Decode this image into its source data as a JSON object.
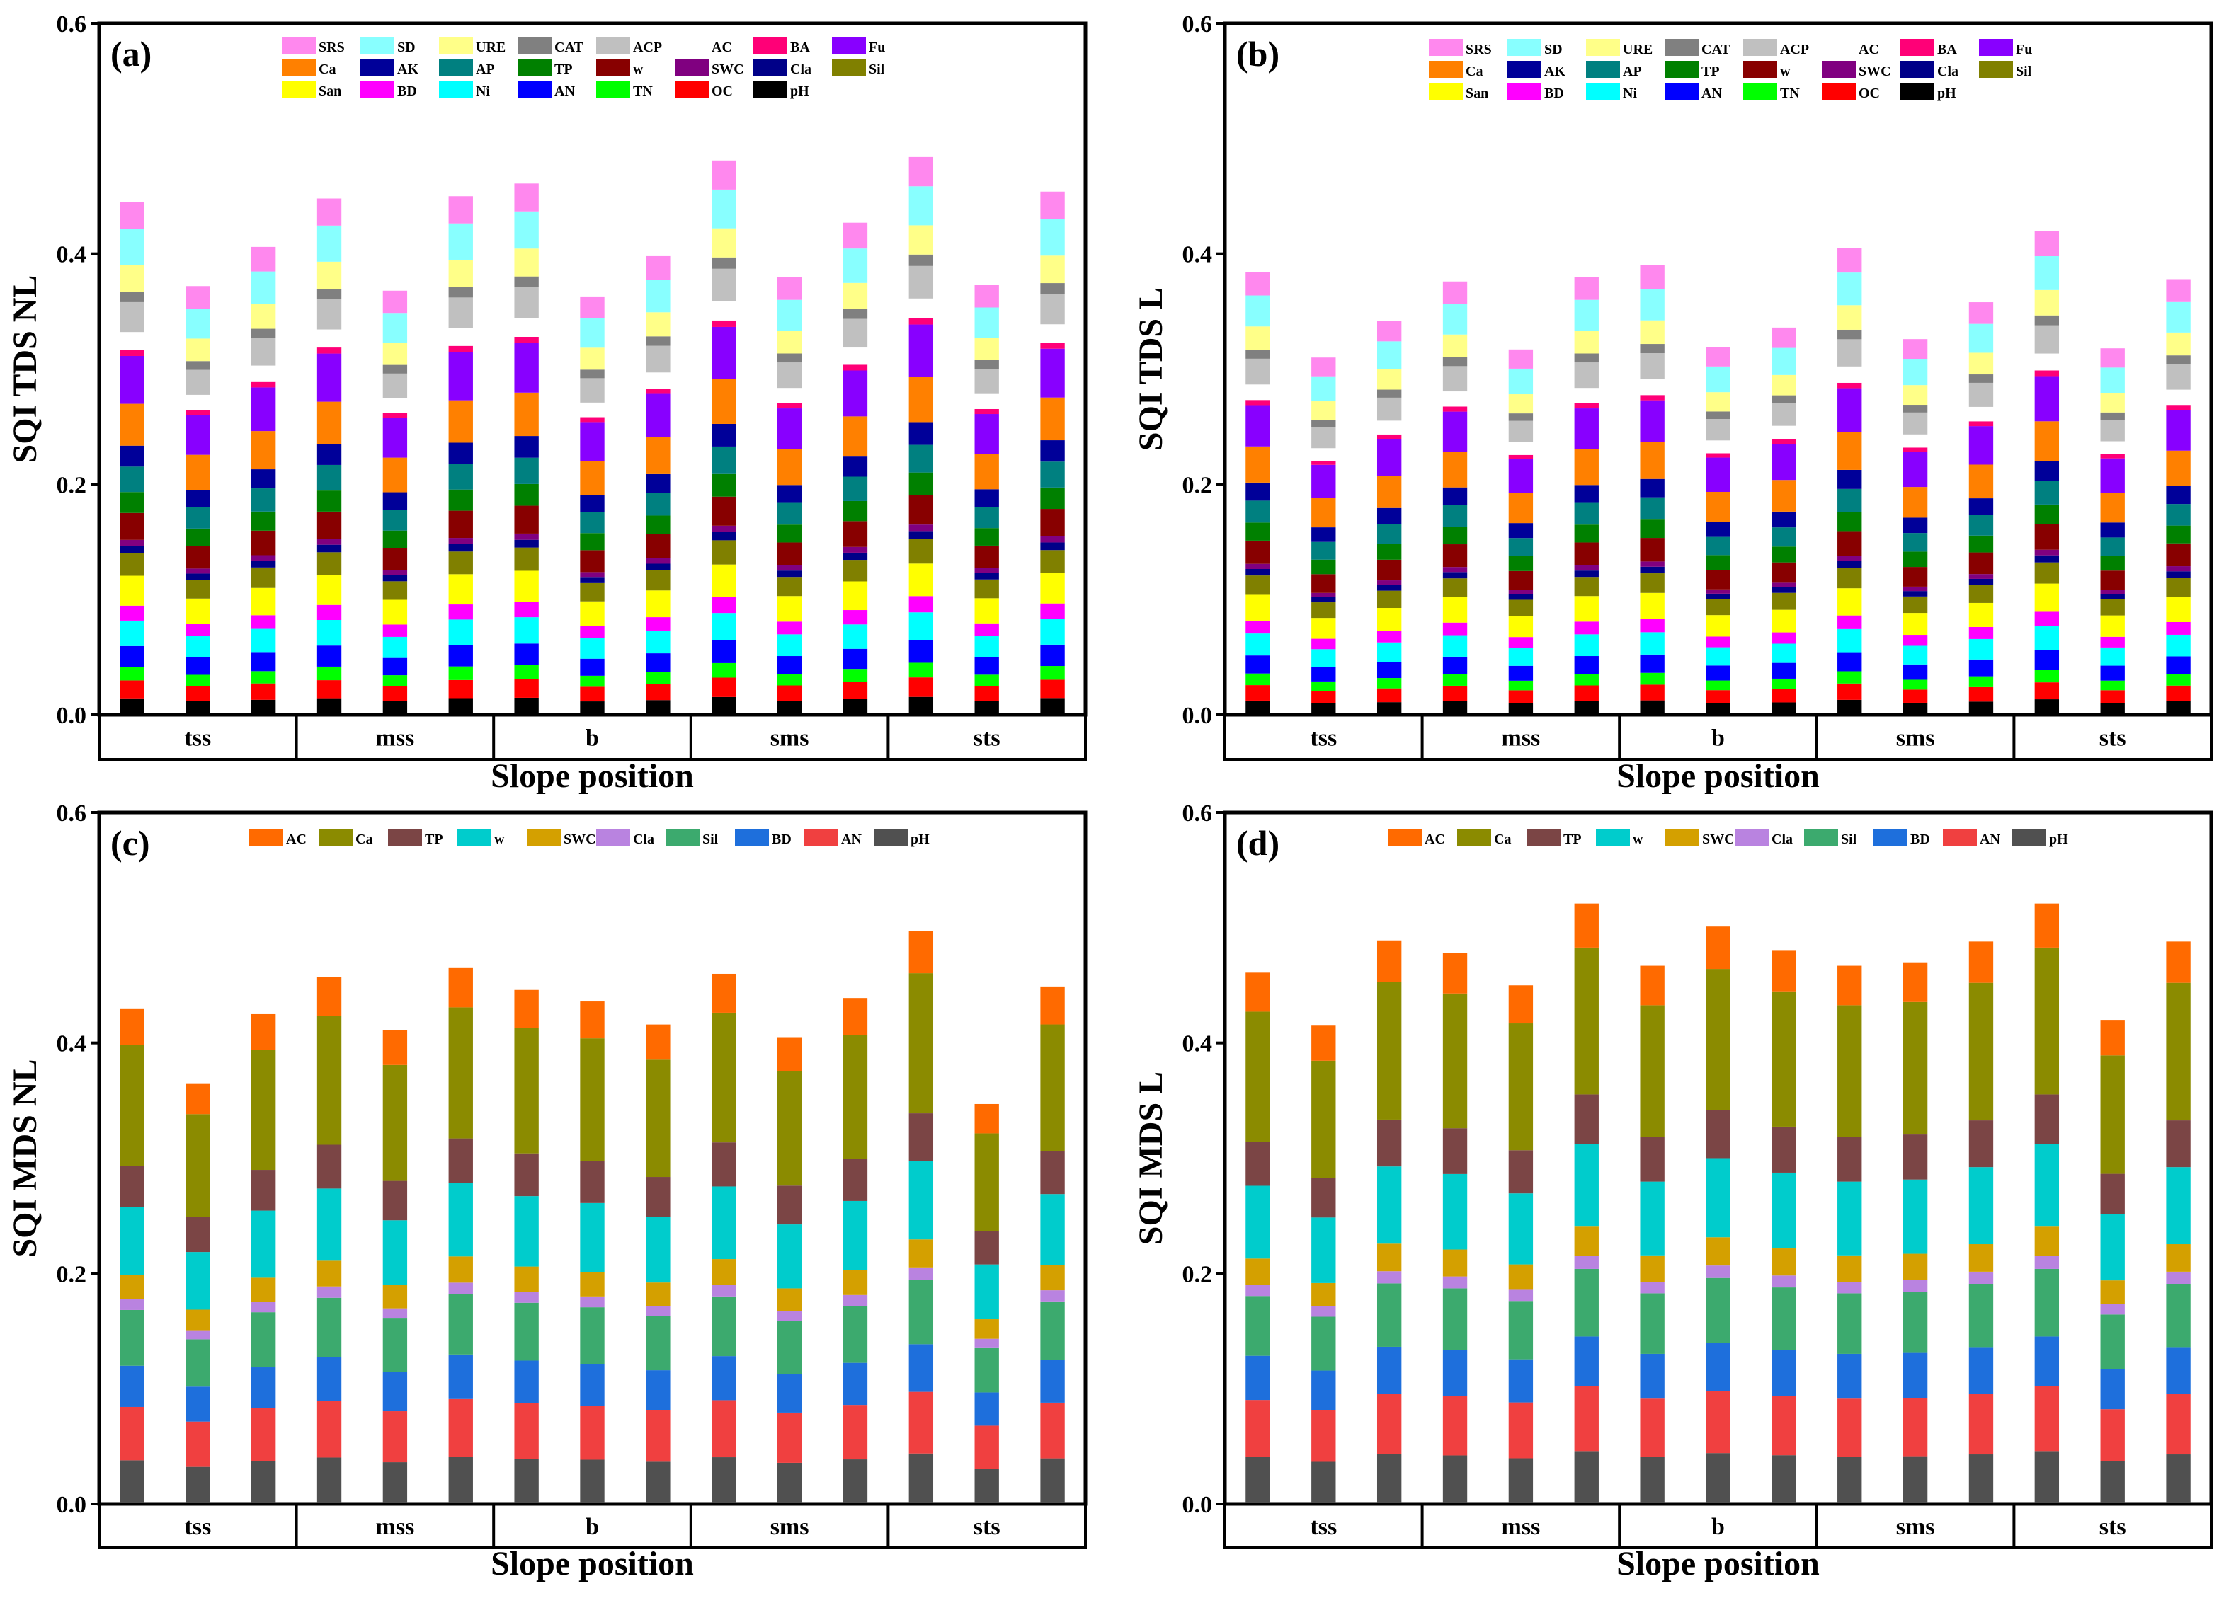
{
  "figure": {
    "x_axis_label": "Slope position"
  },
  "groups": [
    "tss",
    "mss",
    "b",
    "sms",
    "sts"
  ],
  "palettes": {
    "tds": {
      "SRS": "#ff88ee",
      "SD": "#88ffff",
      "URE": "#ffff88",
      "CAT": "#808080",
      "ACP": "#c0c0c0",
      "AC": "#ffffff",
      "BA": "#ff0077",
      "Fu": "#8800ff",
      "Ca": "#ff8000",
      "AK": "#000099",
      "AP": "#008080",
      "TP": "#008000",
      "w": "#880000",
      "SWC": "#800080",
      "Cla": "#000088",
      "Sil": "#808000",
      "San": "#ffff00",
      "BD": "#ff00ff",
      "Ni": "#00ffff",
      "AN": "#0000ff",
      "TN": "#00ff00",
      "OC": "#ff0000",
      "pH": "#000000"
    },
    "mds": {
      "AC": "#ff6a00",
      "Ca": "#8b8b00",
      "TP": "#7b4545",
      "w": "#00cccc",
      "SWC": "#d4a000",
      "Cla": "#b983e0",
      "Sil": "#3caa6e",
      "BD": "#1e6fdc",
      "AN": "#f04040",
      "pH": "#505050"
    }
  },
  "chart_data": [
    {
      "type": "bar",
      "stacked": true,
      "panel_label": "(a)",
      "ylabel": "SQI TDS NL",
      "xlabel": "Slope position",
      "ylim": [
        0,
        0.6
      ],
      "yticks": [
        "0.0",
        "0.2",
        "0.4",
        "0.6"
      ],
      "groups": [
        "tss",
        "mss",
        "b",
        "sms",
        "sts"
      ],
      "legend_rows": [
        [
          "SRS",
          "SD",
          "URE",
          "CAT",
          "ACP",
          "AC",
          "BA",
          "Fu"
        ],
        [
          "Ca",
          "AK",
          "AP",
          "TP",
          "w",
          "SWC",
          "Cla",
          "Sil"
        ],
        [
          "San",
          "BD",
          "Ni",
          "AN",
          "TN",
          "OC",
          "pH"
        ]
      ],
      "series": [
        "pH",
        "OC",
        "TN",
        "AN",
        "Ni",
        "BD",
        "San",
        "Sil",
        "Cla",
        "SWC",
        "w",
        "TP",
        "AP",
        "AK",
        "Ca",
        "Fu",
        "BA",
        "AC",
        "ACP",
        "CAT",
        "URE",
        "SD",
        "SRS"
      ],
      "weights": [
        0.55,
        0.6,
        0.45,
        0.7,
        0.85,
        0.5,
        1.0,
        0.75,
        0.25,
        0.2,
        0.9,
        0.7,
        0.85,
        0.7,
        1.4,
        1.6,
        0.2,
        0.6,
        1.0,
        0.35,
        0.9,
        1.2,
        0.9
      ],
      "totals": [
        0.445,
        0.372,
        0.406,
        0.448,
        0.368,
        0.45,
        0.461,
        0.363,
        0.398,
        0.481,
        0.38,
        0.427,
        0.484,
        0.373,
        0.454
      ]
    },
    {
      "type": "bar",
      "stacked": true,
      "panel_label": "(b)",
      "ylabel": "SQI TDS L",
      "xlabel": "Slope position",
      "ylim": [
        0,
        0.6
      ],
      "yticks": [
        "0.0",
        "0.2",
        "0.4",
        "0.6"
      ],
      "groups": [
        "tss",
        "mss",
        "b",
        "sms",
        "sts"
      ],
      "legend_rows": [
        [
          "SRS",
          "SD",
          "URE",
          "CAT",
          "ACP",
          "AC",
          "BA",
          "Fu"
        ],
        [
          "Ca",
          "AK",
          "AP",
          "TP",
          "w",
          "SWC",
          "Cla",
          "Sil"
        ],
        [
          "San",
          "BD",
          "Ni",
          "AN",
          "TN",
          "OC",
          "pH"
        ]
      ],
      "series": [
        "pH",
        "OC",
        "TN",
        "AN",
        "Ni",
        "BD",
        "San",
        "Sil",
        "Cla",
        "SWC",
        "w",
        "TP",
        "AP",
        "AK",
        "Ca",
        "Fu",
        "BA",
        "AC",
        "ACP",
        "CAT",
        "URE",
        "SD",
        "SRS"
      ],
      "weights": [
        0.55,
        0.6,
        0.45,
        0.7,
        0.85,
        0.5,
        1.0,
        0.75,
        0.25,
        0.2,
        0.9,
        0.7,
        0.85,
        0.7,
        1.4,
        1.6,
        0.2,
        0.6,
        1.0,
        0.35,
        0.9,
        1.2,
        0.9
      ],
      "totals": [
        0.384,
        0.31,
        0.342,
        0.376,
        0.317,
        0.38,
        0.39,
        0.319,
        0.336,
        0.405,
        0.326,
        0.358,
        0.42,
        0.318,
        0.378
      ]
    },
    {
      "type": "bar",
      "stacked": true,
      "panel_label": "(c)",
      "ylabel": "SQI MDS NL",
      "xlabel": "Slope position",
      "ylim": [
        0,
        0.6
      ],
      "yticks": [
        "0.0",
        "0.2",
        "0.4",
        "0.6"
      ],
      "groups": [
        "tss",
        "mss",
        "b",
        "sms",
        "sts"
      ],
      "legend_rows": [
        [
          "AC",
          "Ca",
          "TP",
          "w",
          "SWC",
          "Cla",
          "Sil",
          "BD",
          "AN",
          "pH"
        ]
      ],
      "series": [
        "pH",
        "AN",
        "BD",
        "Sil",
        "Cla",
        "SWC",
        "w",
        "TP",
        "Ca",
        "AC"
      ],
      "weights": [
        0.9,
        1.1,
        0.85,
        1.15,
        0.22,
        0.5,
        1.4,
        0.85,
        2.5,
        0.75
      ],
      "totals": [
        0.43,
        0.365,
        0.425,
        0.457,
        0.411,
        0.465,
        0.446,
        0.436,
        0.416,
        0.46,
        0.405,
        0.439,
        0.497,
        0.347,
        0.449
      ]
    },
    {
      "type": "bar",
      "stacked": true,
      "panel_label": "(d)",
      "ylabel": "SQI MDS L",
      "xlabel": "Slope position",
      "ylim": [
        0,
        0.6
      ],
      "yticks": [
        "0.0",
        "0.2",
        "0.4",
        "0.6"
      ],
      "groups": [
        "tss",
        "mss",
        "b",
        "sms",
        "sts"
      ],
      "legend_rows": [
        [
          "AC",
          "Ca",
          "TP",
          "w",
          "SWC",
          "Cla",
          "Sil",
          "BD",
          "AN",
          "pH"
        ]
      ],
      "series": [
        "pH",
        "AN",
        "BD",
        "Sil",
        "Cla",
        "SWC",
        "w",
        "TP",
        "Ca",
        "AC"
      ],
      "weights": [
        0.9,
        1.1,
        0.85,
        1.15,
        0.22,
        0.5,
        1.4,
        0.85,
        2.5,
        0.75
      ],
      "totals": [
        0.461,
        0.415,
        0.489,
        0.478,
        0.45,
        0.521,
        0.467,
        0.501,
        0.48,
        0.467,
        0.47,
        0.488,
        0.521,
        0.42,
        0.488
      ]
    }
  ]
}
